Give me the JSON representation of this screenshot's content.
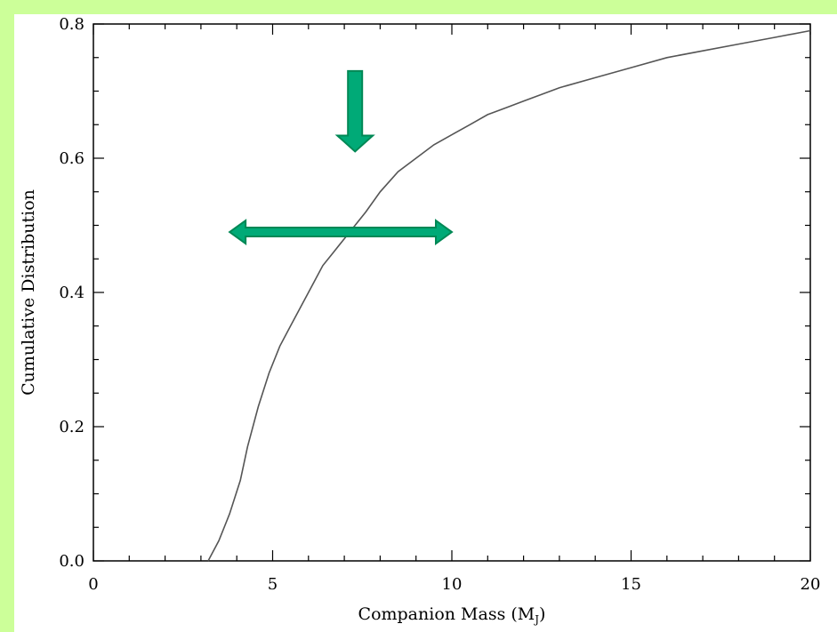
{
  "chart_data": {
    "type": "line",
    "title": "",
    "xlabel": "Companion Mass (M",
    "xlabel_sub": "J",
    "xlabel_close": ")",
    "ylabel": "Cumulative Distribution",
    "xlim": [
      0,
      20
    ],
    "ylim": [
      0,
      0.8
    ],
    "x_ticks": [
      0,
      5,
      10,
      15,
      20
    ],
    "x_tick_labels": [
      "0",
      "5",
      "10",
      "15",
      "20"
    ],
    "y_ticks": [
      0.0,
      0.2,
      0.4,
      0.6,
      0.8
    ],
    "y_tick_labels": [
      "0.0",
      "0.2",
      "0.4",
      "0.6",
      "0.8"
    ],
    "grid": false,
    "series": [
      {
        "color": "#555555",
        "x": [
          3.2,
          3.5,
          3.8,
          4.1,
          4.3,
          4.6,
          4.9,
          5.2,
          5.5,
          5.8,
          6.1,
          6.4,
          6.7,
          7.0,
          7.3,
          7.6,
          8.0,
          8.5,
          9.0,
          9.5,
          10.0,
          10.5,
          11.0,
          11.5,
          12.0,
          12.5,
          13.0,
          14.0,
          15.0,
          16.0,
          17.0,
          18.0,
          19.0,
          20.0
        ],
        "y": [
          0.0,
          0.03,
          0.07,
          0.12,
          0.17,
          0.23,
          0.28,
          0.32,
          0.35,
          0.38,
          0.41,
          0.44,
          0.46,
          0.48,
          0.5,
          0.52,
          0.55,
          0.58,
          0.6,
          0.62,
          0.635,
          0.65,
          0.665,
          0.675,
          0.685,
          0.695,
          0.705,
          0.72,
          0.735,
          0.75,
          0.76,
          0.77,
          0.78,
          0.79
        ]
      }
    ],
    "annotations": [
      {
        "type": "arrow-down",
        "color": "#00aa77",
        "x": 7.3,
        "y_from": 0.73,
        "y_to": 0.61
      },
      {
        "type": "arrow-double-horizontal",
        "color": "#00aa77",
        "y": 0.49,
        "x_from": 3.8,
        "x_to": 10.0
      }
    ]
  }
}
